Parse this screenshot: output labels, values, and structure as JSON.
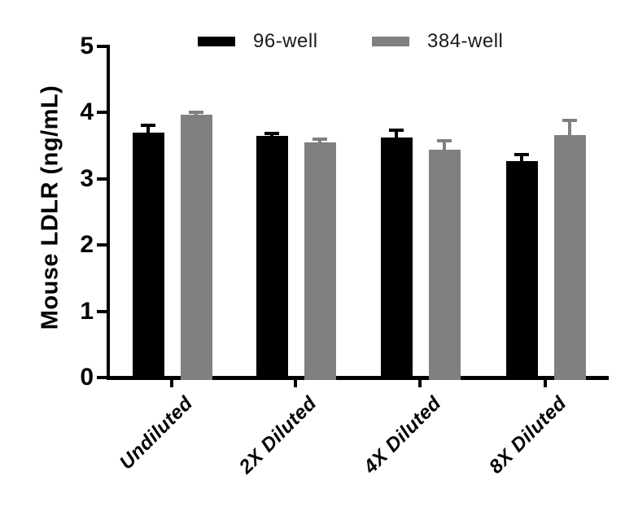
{
  "figure": {
    "background": "#ffffff",
    "axis_color": "#000000"
  },
  "legend": {
    "position": "top",
    "items": [
      {
        "label": "96-well",
        "color": "#000000"
      },
      {
        "label": "384-well",
        "color": "#808080"
      }
    ]
  },
  "chart_data": {
    "type": "bar",
    "title": "",
    "xlabel": "",
    "ylabel": "Mouse LDLR (ng/mL)",
    "ylim": [
      0,
      5
    ],
    "yticks": [
      0,
      1,
      2,
      3,
      4,
      5
    ],
    "grid": false,
    "error_bars": true,
    "legend_position": "top",
    "categories": [
      "Undiluted",
      "2X Diluted",
      "4X Diluted",
      "8X Diluted"
    ],
    "series": [
      {
        "name": "96-well",
        "color": "#000000",
        "values": [
          3.7,
          3.65,
          3.63,
          3.27
        ],
        "errors": [
          0.11,
          0.04,
          0.11,
          0.1
        ]
      },
      {
        "name": "384-well",
        "color": "#808080",
        "values": [
          3.97,
          3.55,
          3.44,
          3.66
        ],
        "errors": [
          0.04,
          0.05,
          0.13,
          0.22
        ]
      }
    ]
  }
}
